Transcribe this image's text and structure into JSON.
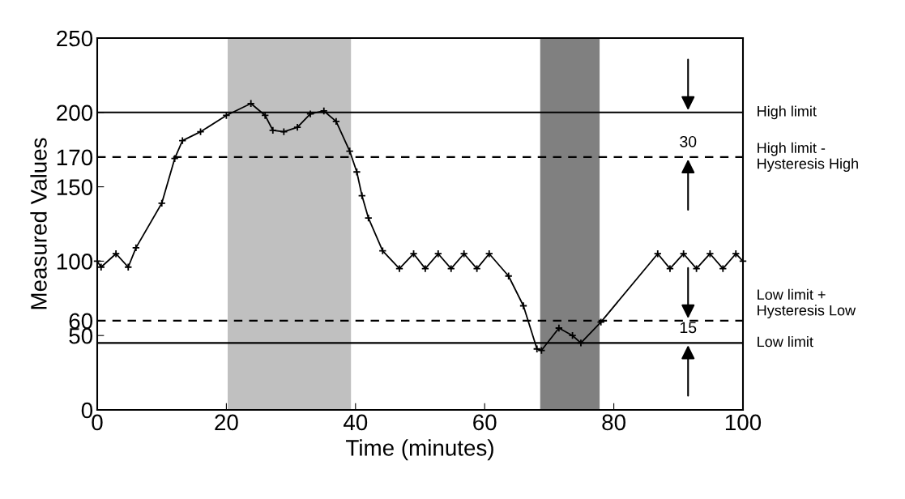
{
  "chart_data": {
    "type": "line",
    "xlabel": "Time (minutes)",
    "ylabel": "Measured Values",
    "x": [
      0,
      0.6,
      2.9,
      4.8,
      6,
      10,
      12,
      13.2,
      16,
      20,
      23.8,
      26,
      27.2,
      28.9,
      31,
      33,
      35.1,
      37,
      39.1,
      40.2,
      41,
      42,
      44.2,
      46.8,
      49,
      50.8,
      52.8,
      54.8,
      56.8,
      58.8,
      60.7,
      63.7,
      66,
      68.1,
      68.8,
      71.5,
      73.6,
      74.9,
      78,
      86.8,
      88.7,
      90.8,
      92.8,
      94.9,
      96.9,
      98.9,
      100
    ],
    "series": [
      {
        "color": "#000000",
        "values": [
          100,
          96,
          105,
          96,
          109,
          139,
          169,
          181,
          187,
          198,
          206,
          198,
          188,
          187,
          190,
          199,
          201,
          194,
          174,
          160,
          144,
          129,
          107,
          95,
          105,
          95,
          105,
          95,
          105,
          95,
          105,
          90,
          70,
          41,
          40,
          55,
          50,
          45,
          59,
          105,
          95,
          105,
          95,
          105,
          95,
          105,
          100
        ]
      }
    ],
    "marker": "cross",
    "line_style": "solid",
    "xlim": [
      0,
      100
    ],
    "xticks": [
      0,
      20,
      40,
      60,
      80,
      100
    ],
    "ylim": [
      0,
      250
    ],
    "yticks": [
      0,
      50,
      60,
      100,
      150,
      170,
      200,
      250
    ],
    "grid": false,
    "legend": false,
    "ref_lines": [
      {
        "axis": "y",
        "value": 200,
        "label": "High limit",
        "color": "#000000",
        "line_style": "solid"
      },
      {
        "axis": "y",
        "value": 170,
        "label": "High limit -\nHysteresis High",
        "color": "#000000",
        "line_style": "dashed"
      },
      {
        "axis": "y",
        "value": 60,
        "label": "Low limit +\nHysteresis Low",
        "color": "#000000",
        "line_style": "dashed"
      },
      {
        "axis": "y",
        "value": 45,
        "label": "Low limit",
        "color": "#000000",
        "line_style": "solid"
      }
    ],
    "bands": [
      {
        "axis": "x",
        "from": 20.2,
        "to": 39.3,
        "color": "#c0c0c0"
      },
      {
        "axis": "x",
        "from": 68.6,
        "to": 77.8,
        "color": "#808080"
      }
    ],
    "annotations": [
      {
        "text": "30",
        "x": 91.5,
        "y": 170
      },
      {
        "text": "15",
        "x": 91.5,
        "y": 45
      }
    ]
  }
}
